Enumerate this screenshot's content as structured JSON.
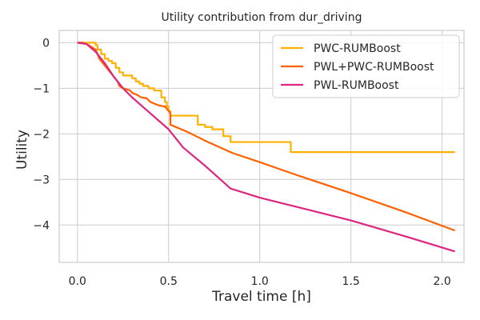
{
  "chart_data": {
    "type": "line",
    "title": "Utility contribution from dur_driving",
    "xlabel": "Travel time [h]",
    "ylabel": "Utility",
    "xlim": [
      -0.1,
      2.12
    ],
    "ylim": [
      -4.82,
      0.27
    ],
    "xticks": [
      0.0,
      0.5,
      1.0,
      1.5,
      2.0
    ],
    "xtick_labels": [
      "0.0",
      "0.5",
      "1.0",
      "1.5",
      "2.0"
    ],
    "yticks": [
      0,
      -1,
      -2,
      -3,
      -4
    ],
    "ytick_labels": [
      "0",
      "−1",
      "−2",
      "−3",
      "−4"
    ],
    "grid": true,
    "legend_position": "top-right",
    "series": [
      {
        "name": "PWC-RUMBoost",
        "color": "#FFB000",
        "step": true,
        "x": [
          0.0,
          0.1,
          0.11,
          0.13,
          0.15,
          0.17,
          0.19,
          0.21,
          0.23,
          0.25,
          0.3,
          0.32,
          0.34,
          0.36,
          0.39,
          0.42,
          0.46,
          0.48,
          0.49,
          0.5,
          0.51,
          0.53,
          0.66,
          0.7,
          0.74,
          0.8,
          0.84,
          1.17,
          2.07
        ],
        "y": [
          0.0,
          -0.05,
          -0.15,
          -0.25,
          -0.35,
          -0.4,
          -0.45,
          -0.55,
          -0.65,
          -0.72,
          -0.78,
          -0.85,
          -0.9,
          -0.95,
          -1.0,
          -1.05,
          -1.2,
          -1.3,
          -1.4,
          -1.5,
          -1.6,
          -1.6,
          -1.8,
          -1.85,
          -1.9,
          -2.05,
          -2.18,
          -2.4,
          -2.4
        ]
      },
      {
        "name": "PWL+PWC-RUMBoost",
        "color": "#FE6100",
        "step": false,
        "x": [
          0.0,
          0.03,
          0.06,
          0.1,
          0.12,
          0.14,
          0.17,
          0.2,
          0.22,
          0.23,
          0.25,
          0.29,
          0.3,
          0.33,
          0.35,
          0.38,
          0.4,
          0.43,
          0.45,
          0.48,
          0.5,
          0.51,
          0.51,
          0.6,
          0.7,
          0.85,
          1.0,
          1.2,
          1.5,
          1.8,
          2.07
        ],
        "y": [
          0.0,
          0.0,
          -0.05,
          -0.15,
          -0.35,
          -0.45,
          -0.6,
          -0.75,
          -0.85,
          -0.95,
          -1.0,
          -1.05,
          -1.1,
          -1.15,
          -1.2,
          -1.22,
          -1.3,
          -1.35,
          -1.38,
          -1.4,
          -1.5,
          -1.55,
          -1.8,
          -1.95,
          -2.15,
          -2.42,
          -2.62,
          -2.9,
          -3.3,
          -3.72,
          -4.12
        ]
      },
      {
        "name": "PWL-RUMBoost",
        "color": "#DC267F",
        "step": false,
        "x": [
          0.0,
          0.05,
          0.1,
          0.15,
          0.2,
          0.25,
          0.3,
          0.4,
          0.5,
          0.58,
          0.7,
          0.84,
          1.0,
          1.2,
          1.5,
          1.8,
          2.07
        ],
        "y": [
          0.0,
          -0.03,
          -0.2,
          -0.45,
          -0.75,
          -1.0,
          -1.2,
          -1.55,
          -1.9,
          -2.3,
          -2.7,
          -3.2,
          -3.4,
          -3.6,
          -3.9,
          -4.25,
          -4.58
        ]
      }
    ]
  }
}
